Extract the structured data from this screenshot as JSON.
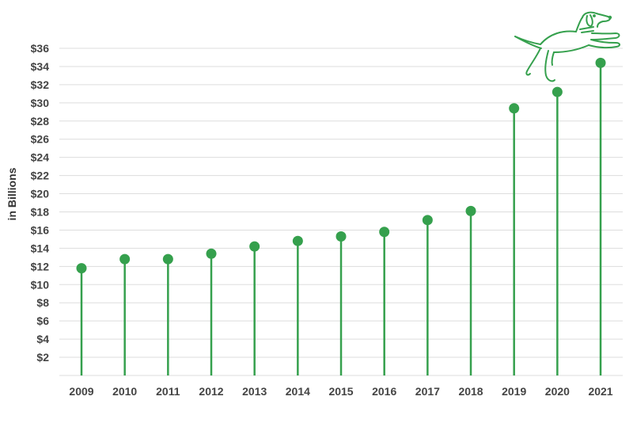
{
  "chart_data": {
    "type": "lollipop",
    "categories": [
      "2009",
      "2010",
      "2011",
      "2012",
      "2013",
      "2014",
      "2015",
      "2016",
      "2017",
      "2018",
      "2019",
      "2020",
      "2021"
    ],
    "values": [
      11.8,
      12.8,
      12.8,
      13.4,
      14.2,
      14.8,
      15.3,
      15.8,
      17.1,
      18.1,
      29.4,
      31.2,
      34.4
    ],
    "ylabel": "in Billions",
    "ylim": [
      0,
      36
    ],
    "yticks": [
      {
        "value": 2,
        "label": "$2"
      },
      {
        "value": 4,
        "label": "$4"
      },
      {
        "value": 6,
        "label": "$6"
      },
      {
        "value": 8,
        "label": "$8"
      },
      {
        "value": 10,
        "label": "$10"
      },
      {
        "value": 12,
        "label": "$12"
      },
      {
        "value": 14,
        "label": "$14"
      },
      {
        "value": 16,
        "label": "$16"
      },
      {
        "value": 18,
        "label": "$18"
      },
      {
        "value": 20,
        "label": "$20"
      },
      {
        "value": 22,
        "label": "$22"
      },
      {
        "value": 24,
        "label": "$24"
      },
      {
        "value": 26,
        "label": "$26"
      },
      {
        "value": 28,
        "label": "$28"
      },
      {
        "value": 30,
        "label": "$30"
      },
      {
        "value": 32,
        "label": "$32"
      },
      {
        "value": 34,
        "label": "$34"
      },
      {
        "value": 36,
        "label": "$36"
      }
    ],
    "grid": true,
    "colors": {
      "marker": "#35a04d",
      "grid": "#dddddd",
      "text": "#444444"
    },
    "decoration": {
      "icon": "dog-outline-icon",
      "color": "#35a04d"
    }
  }
}
